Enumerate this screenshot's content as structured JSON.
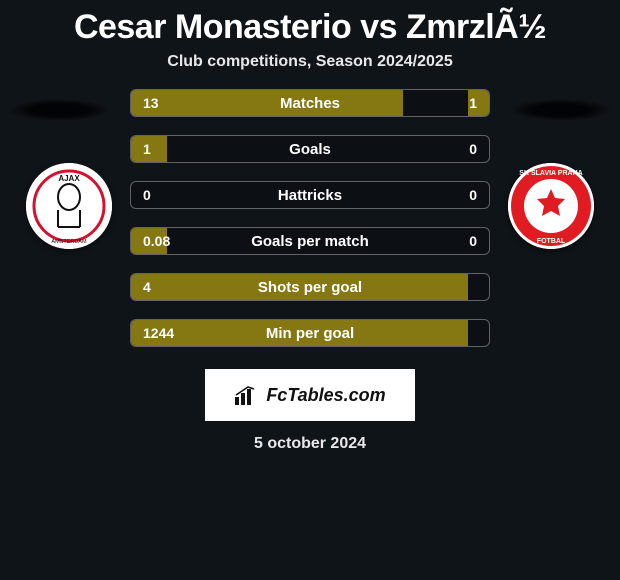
{
  "title": "Cesar Monasterio vs ZmrzlÃ½",
  "subtitle": "Club competitions, Season 2024/2025",
  "date": "5 october 2024",
  "brand": "FcTables.com",
  "colors": {
    "bar_fill": "#857712",
    "background": "#0f1419",
    "brand_bg": "#ffffff"
  },
  "club_left": {
    "name": "Ajax",
    "ring_color": "#d2122e",
    "inner_color": "#ffffff"
  },
  "club_right": {
    "name": "Slavia Praha",
    "ring_outer": "#e11b22",
    "ring_text": "#ffffff",
    "star_color": "#e11b22"
  },
  "stats": [
    {
      "label": "Matches",
      "left_val": "13",
      "right_val": "1",
      "left_pct": 76,
      "right_pct": 6
    },
    {
      "label": "Goals",
      "left_val": "1",
      "right_val": "0",
      "left_pct": 10,
      "right_pct": 0
    },
    {
      "label": "Hattricks",
      "left_val": "0",
      "right_val": "0",
      "left_pct": 0,
      "right_pct": 0
    },
    {
      "label": "Goals per match",
      "left_val": "0.08",
      "right_val": "0",
      "left_pct": 10,
      "right_pct": 0
    },
    {
      "label": "Shots per goal",
      "left_val": "4",
      "right_val": "",
      "left_pct": 94,
      "right_pct": 0
    },
    {
      "label": "Min per goal",
      "left_val": "1244",
      "right_val": "",
      "left_pct": 94,
      "right_pct": 0
    }
  ]
}
